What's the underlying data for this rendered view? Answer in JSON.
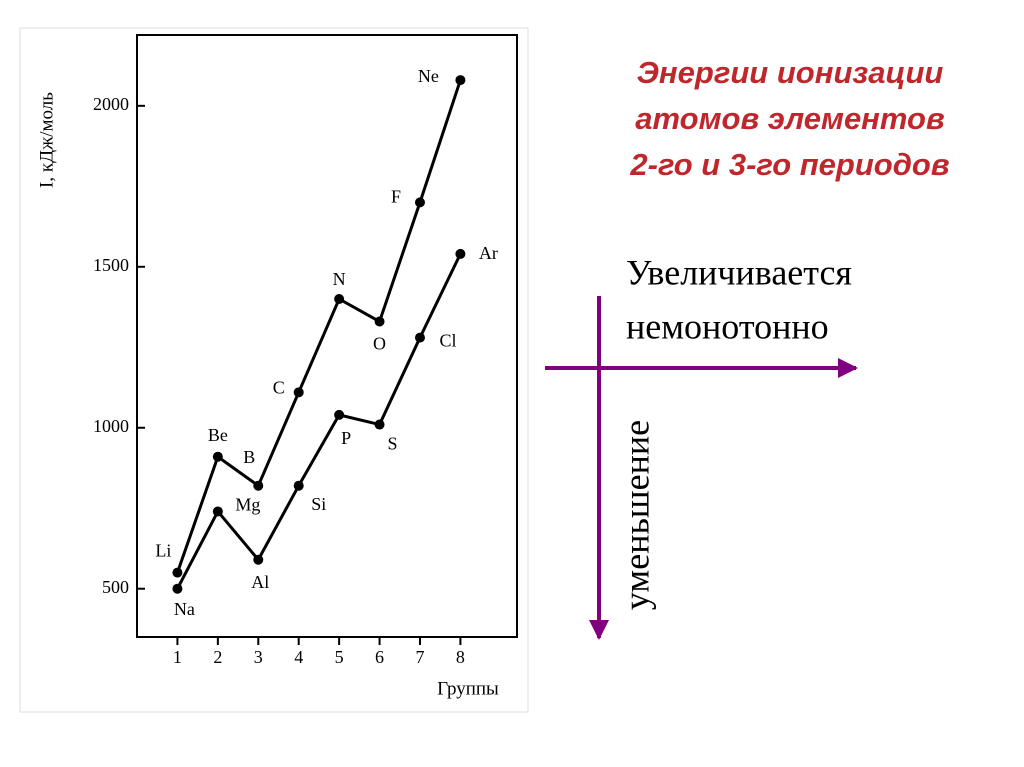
{
  "chart_data": {
    "type": "line",
    "y_label": "I, кДж/моль",
    "x_label": "Группы",
    "x": [
      1,
      2,
      3,
      4,
      5,
      6,
      7,
      8
    ],
    "series": [
      {
        "color": "#000000",
        "values": [
          550,
          910,
          820,
          1110,
          1400,
          1330,
          1700,
          2080
        ],
        "point_labels": [
          "Li",
          "Be",
          "B",
          "C",
          "N",
          "O",
          "F",
          "Ne"
        ]
      },
      {
        "color": "#000000",
        "values": [
          500,
          740,
          590,
          820,
          1040,
          1010,
          1280,
          1540
        ],
        "point_labels": [
          "Na",
          "Mg",
          "Al",
          "Si",
          "P",
          "S",
          "Cl",
          "Ar"
        ]
      }
    ],
    "xlim": [
      0,
      9.4
    ],
    "ylim": [
      350,
      2220
    ],
    "xticks": [
      1,
      2,
      3,
      4,
      5,
      6,
      7,
      8
    ],
    "yticks": [
      500,
      1000,
      1500,
      2000
    ]
  },
  "slide": {
    "title_lines": [
      "Энергии ионизации",
      "атомов элементов",
      "2-го и 3-го периодов"
    ],
    "horizontal_note_lines": [
      "Увеличивается",
      "немонотонно"
    ],
    "vertical_note": "уменьшение"
  }
}
